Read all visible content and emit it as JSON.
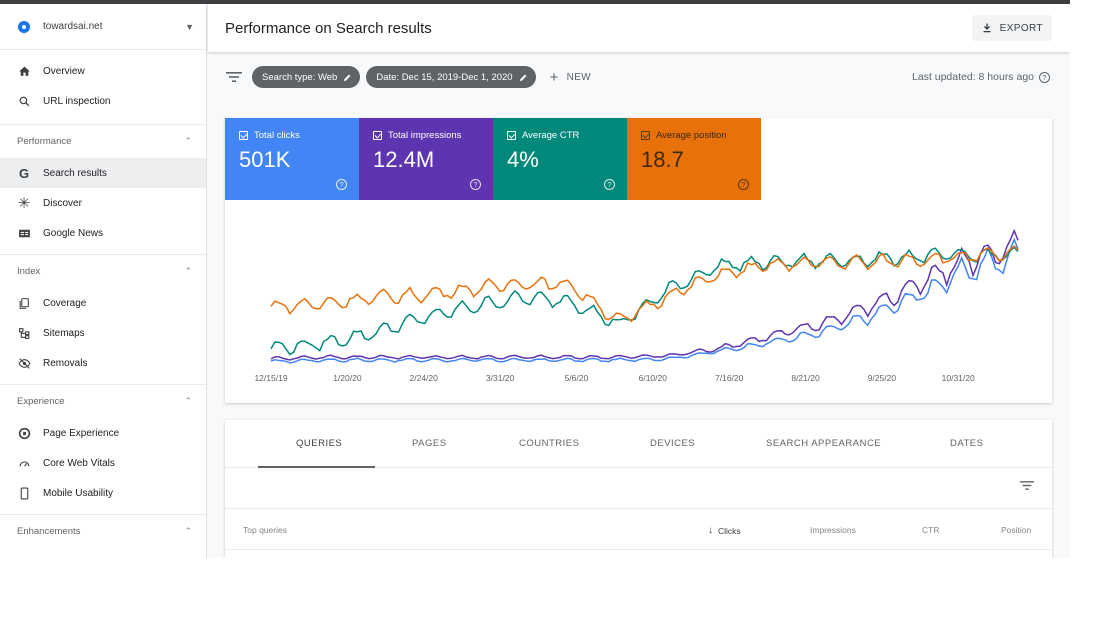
{
  "sidebar": {
    "property": "towardsai.net",
    "top_items": [
      {
        "label": "Overview",
        "icon": "home-icon"
      },
      {
        "label": "URL inspection",
        "icon": "search-icon"
      }
    ],
    "sections": [
      {
        "title": "Performance",
        "items": [
          {
            "label": "Search results",
            "icon": "google-g-icon",
            "active": true
          },
          {
            "label": "Discover",
            "icon": "asterisk-icon"
          },
          {
            "label": "Google News",
            "icon": "news-icon"
          }
        ]
      },
      {
        "title": "Index",
        "items": [
          {
            "label": "Coverage",
            "icon": "copy-icon"
          },
          {
            "label": "Sitemaps",
            "icon": "sitemap-icon"
          },
          {
            "label": "Removals",
            "icon": "eye-off-icon"
          }
        ]
      },
      {
        "title": "Experience",
        "items": [
          {
            "label": "Page Experience",
            "icon": "circle-plus-icon"
          },
          {
            "label": "Core Web Vitals",
            "icon": "gauge-icon"
          },
          {
            "label": "Mobile Usability",
            "icon": "phone-icon"
          }
        ]
      },
      {
        "title": "Enhancements",
        "items": []
      }
    ]
  },
  "header": {
    "title": "Performance on Search results",
    "export_label": "EXPORT"
  },
  "filters": {
    "search_type": "Search type: Web",
    "date": "Date: Dec 15, 2019-Dec 1, 2020",
    "new_label": "NEW",
    "last_updated": "Last updated: 8 hours ago"
  },
  "metrics": {
    "clicks": {
      "label": "Total clicks",
      "value": "501K",
      "color": "#4285f4"
    },
    "impressions": {
      "label": "Total impressions",
      "value": "12.4M",
      "color": "#5e35b1"
    },
    "ctr": {
      "label": "Average CTR",
      "value": "4%",
      "color": "#00897b"
    },
    "position": {
      "label": "Average position",
      "value": "18.7",
      "color": "#e8710a"
    }
  },
  "chart_data": {
    "type": "line",
    "x_tick_labels": [
      "12/15/19",
      "1/20/20",
      "2/24/20",
      "3/31/20",
      "5/6/20",
      "6/10/20",
      "7/16/20",
      "8/21/20",
      "9/25/20",
      "10/31/20"
    ],
    "series": [
      {
        "metric": "clicks",
        "color": "#4285f4",
        "values": [
          3,
          4,
          4,
          4,
          4,
          4,
          4,
          4,
          5,
          10,
          16,
          22,
          33,
          48,
          65,
          75
        ]
      },
      {
        "metric": "impressions",
        "color": "#5e35b1",
        "values": [
          5,
          6,
          6,
          6,
          6,
          6,
          6,
          6,
          7,
          12,
          20,
          28,
          40,
          55,
          72,
          80
        ]
      },
      {
        "metric": "ctr",
        "color": "#00897b",
        "values": [
          12,
          15,
          22,
          32,
          40,
          46,
          44,
          28,
          52,
          68,
          70,
          71,
          72,
          74,
          75,
          75
        ]
      },
      {
        "metric": "position",
        "color": "#e8710a",
        "values": [
          40,
          42,
          46,
          48,
          52,
          56,
          55,
          30,
          48,
          62,
          68,
          70,
          70,
          72,
          74,
          76
        ]
      }
    ],
    "grid": false,
    "legend": "none"
  },
  "table": {
    "tabs": [
      "QUERIES",
      "PAGES",
      "COUNTRIES",
      "DEVICES",
      "SEARCH APPEARANCE",
      "DATES"
    ],
    "active_tab": "QUERIES",
    "columns": [
      "Top queries",
      "Clicks",
      "Impressions",
      "CTR",
      "Position"
    ],
    "sort_column": "Clicks"
  }
}
